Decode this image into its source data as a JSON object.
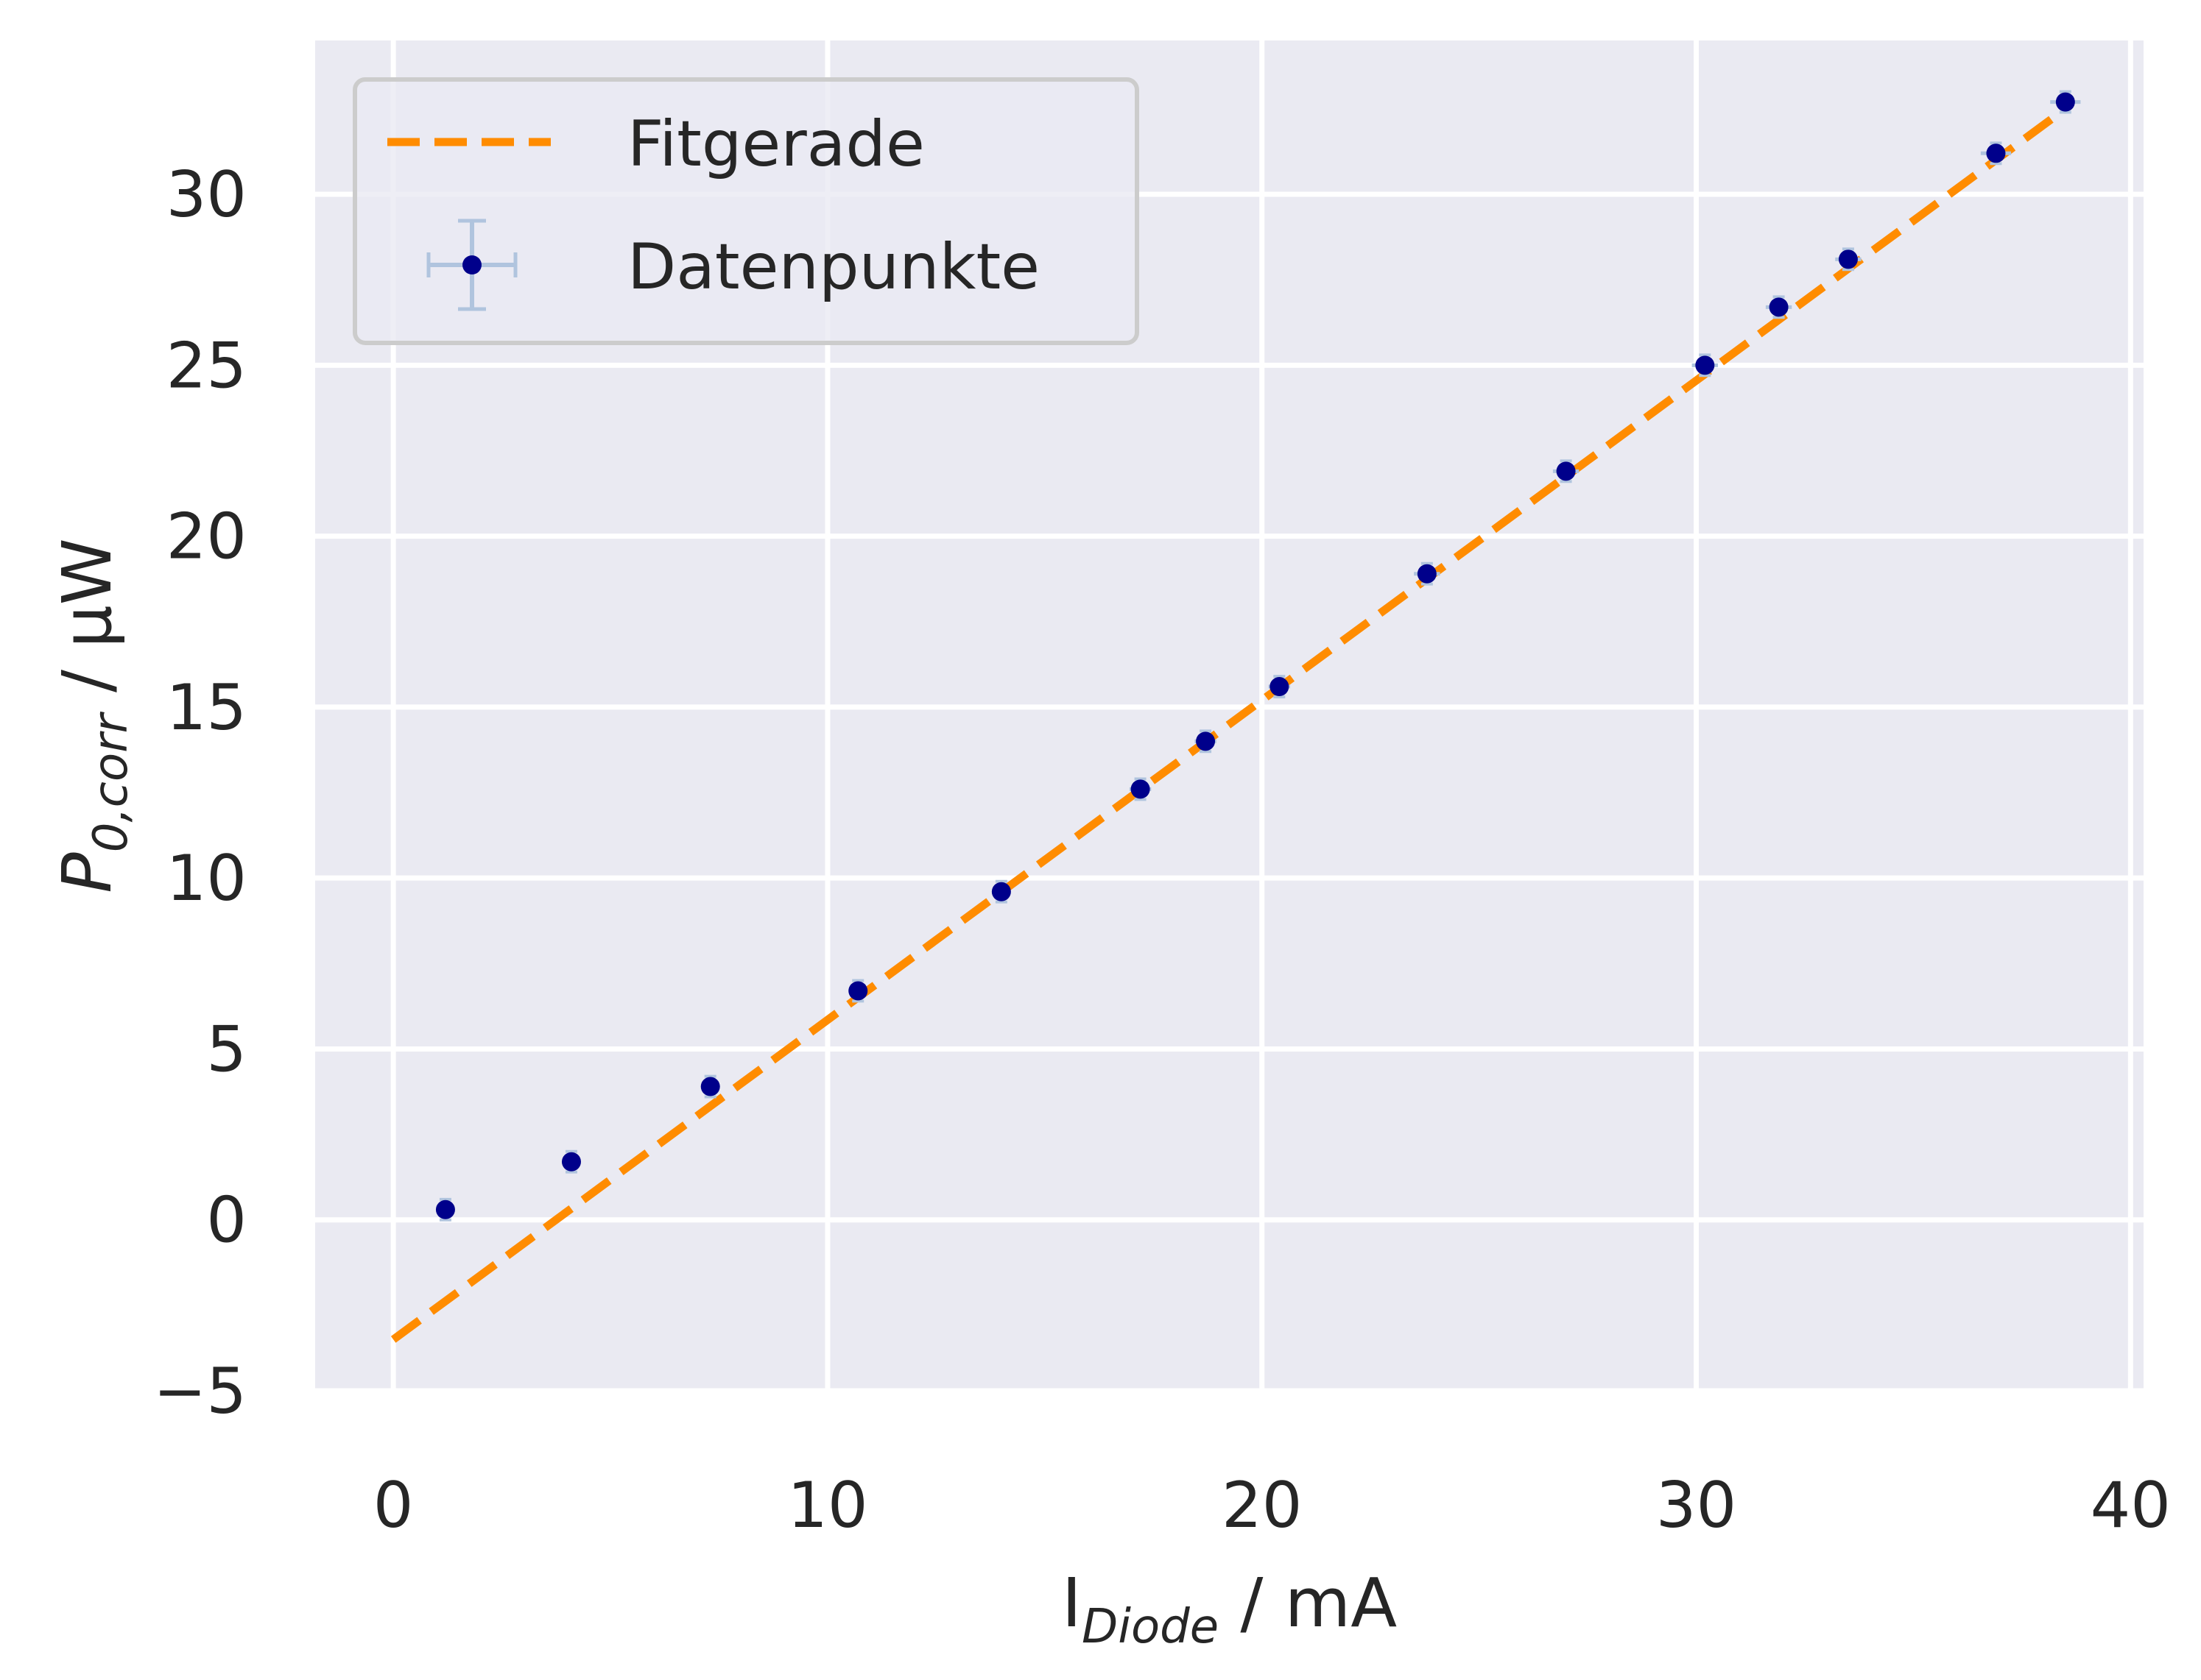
{
  "chart_data": {
    "type": "scatter",
    "xlabel": {
      "main": "I",
      "sub": "Diode",
      "unit": " / mA"
    },
    "ylabel": {
      "main": "P",
      "sub": "0,corr",
      "unit": " / μW"
    },
    "xlim": [
      -1.8,
      40.3
    ],
    "ylim": [
      -5,
      34.5
    ],
    "xticks": [
      0,
      10,
      20,
      30,
      40
    ],
    "yticks": [
      -5,
      0,
      5,
      10,
      15,
      20,
      25,
      30
    ],
    "xtick_labels": [
      "0",
      "10",
      "20",
      "30",
      "40"
    ],
    "ytick_labels": [
      "−5",
      "0",
      "5",
      "10",
      "15",
      "20",
      "25",
      "30"
    ],
    "grid": true,
    "legend_position": "top-left",
    "colors": {
      "background": "#eaeaf2",
      "grid": "#ffffff",
      "fit": "#ff8c00",
      "points": "#00008b",
      "errorbars": "#b0c4de"
    },
    "series": [
      {
        "name": "Fitgerade",
        "kind": "line",
        "style": "dashed",
        "x": [
          0,
          38.5
        ],
        "y": [
          -3.5,
          32.5
        ]
      },
      {
        "name": "Datenpunkte",
        "kind": "errorbar",
        "x": [
          1.2,
          4.1,
          7.3,
          10.7,
          14.0,
          17.2,
          18.7,
          20.4,
          23.8,
          27.0,
          30.2,
          31.9,
          33.5,
          36.9,
          38.5
        ],
        "y": [
          0.3,
          1.7,
          3.9,
          6.7,
          9.6,
          12.6,
          14.0,
          15.6,
          18.9,
          21.9,
          25.0,
          26.7,
          28.1,
          31.2,
          32.7
        ],
        "xerr": [
          0.2,
          0.2,
          0.2,
          0.2,
          0.2,
          0.25,
          0.25,
          0.25,
          0.3,
          0.3,
          0.3,
          0.3,
          0.3,
          0.35,
          0.35
        ],
        "yerr": [
          0.3,
          0.3,
          0.3,
          0.3,
          0.3,
          0.3,
          0.3,
          0.3,
          0.3,
          0.3,
          0.3,
          0.3,
          0.3,
          0.3,
          0.3
        ]
      }
    ]
  }
}
